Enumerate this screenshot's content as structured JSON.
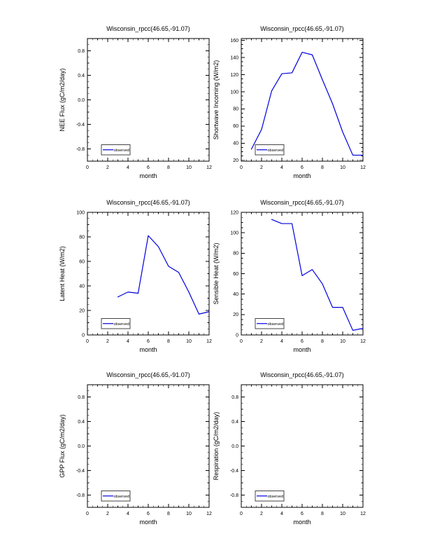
{
  "page": {
    "background": "#ffffff",
    "description": "Six-panel monthly observation plot sheet"
  },
  "chart_data": [
    {
      "id": "nee-flux",
      "type": "line",
      "title": "Wisconsin_rpcc(46.65,-91.07)",
      "xlabel": "month",
      "ylabel": "NEE Flux (gC/m2/day)",
      "xlim": [
        0,
        12
      ],
      "ylim": [
        -1,
        1
      ],
      "xtick_values": [
        0,
        2,
        4,
        6,
        8,
        10,
        12
      ],
      "xtick_labels": [
        "0",
        "2",
        "4",
        "6",
        "8",
        "10",
        "12"
      ],
      "xtick_minor": 0.5,
      "ytick_values": [
        -0.8,
        -0.4,
        0,
        0.4,
        0.8
      ],
      "ytick_labels": [
        "-0.8",
        "-0.4",
        "0.0",
        "0.4",
        "0.8"
      ],
      "ytick_minor": 0.1,
      "grid": false,
      "legend": {
        "label": "observed",
        "position": "lower-left"
      },
      "line_color": "#0000dd",
      "series": {
        "name": "observed",
        "x": [],
        "y": []
      }
    },
    {
      "id": "shortwave-incoming",
      "type": "line",
      "title": "Wisconsin_rpcc(46.65,-91.07)",
      "xlabel": "month",
      "ylabel": "Shortwave Incoming (W/m2)",
      "xlim": [
        0,
        12
      ],
      "ylim": [
        19,
        162
      ],
      "xtick_values": [
        0,
        2,
        4,
        6,
        8,
        10,
        12
      ],
      "xtick_labels": [
        "0",
        "2",
        "4",
        "6",
        "8",
        "10",
        "12"
      ],
      "xtick_minor": 0.5,
      "ytick_values": [
        20,
        40,
        60,
        80,
        100,
        120,
        140,
        160
      ],
      "ytick_labels": [
        "20",
        "40",
        "60",
        "80",
        "100",
        "120",
        "140",
        "160"
      ],
      "ytick_minor": 5,
      "grid": false,
      "legend": {
        "label": "observed",
        "position": "lower-left"
      },
      "line_color": "#0000dd",
      "series": {
        "name": "observed",
        "x": [
          1,
          2,
          3,
          4,
          5,
          6,
          7,
          8,
          9,
          10,
          11,
          12
        ],
        "y": [
          33,
          56,
          101,
          121,
          122,
          146,
          143,
          114,
          86,
          53,
          26,
          26
        ]
      }
    },
    {
      "id": "latent-heat",
      "type": "line",
      "title": "Wisconsin_rpcc(46.65,-91.07)",
      "xlabel": "month",
      "ylabel": "Latent Heat (W/m2)",
      "xlim": [
        0,
        12
      ],
      "ylim": [
        0,
        100
      ],
      "xtick_values": [
        0,
        2,
        4,
        6,
        8,
        10,
        12
      ],
      "xtick_labels": [
        "0",
        "2",
        "4",
        "6",
        "8",
        "10",
        "12"
      ],
      "xtick_minor": 0.5,
      "ytick_values": [
        0,
        20,
        40,
        60,
        80,
        100
      ],
      "ytick_labels": [
        "0",
        "20",
        "40",
        "60",
        "80",
        "100"
      ],
      "ytick_minor": 5,
      "grid": false,
      "legend": {
        "label": "observed",
        "position": "lower-left"
      },
      "line_color": "#0000dd",
      "series": {
        "name": "observed",
        "x": [
          3,
          4,
          5,
          6,
          7,
          8,
          9,
          10,
          11,
          12
        ],
        "y": [
          31,
          35,
          34,
          81,
          72,
          56,
          51,
          35,
          17,
          19
        ]
      }
    },
    {
      "id": "sensible-heat",
      "type": "line",
      "title": "Wisconsin_rpcc(46.65,-91.07)",
      "xlabel": "month",
      "ylabel": "Sensible Heat (W/m2)",
      "xlim": [
        0,
        12
      ],
      "ylim": [
        0,
        120
      ],
      "xtick_values": [
        0,
        2,
        4,
        6,
        8,
        10,
        12
      ],
      "xtick_labels": [
        "0",
        "2",
        "4",
        "6",
        "8",
        "10",
        "12"
      ],
      "xtick_minor": 0.5,
      "ytick_values": [
        0,
        20,
        40,
        60,
        80,
        100,
        120
      ],
      "ytick_labels": [
        "0",
        "20",
        "40",
        "60",
        "80",
        "100",
        "120"
      ],
      "ytick_minor": 5,
      "grid": false,
      "legend": {
        "label": "observed",
        "position": "lower-left"
      },
      "line_color": "#0000dd",
      "series": {
        "name": "observed",
        "x": [
          3,
          4,
          5,
          6,
          7,
          8,
          9,
          10,
          11,
          12
        ],
        "y": [
          113,
          109,
          109,
          58,
          64,
          50,
          27,
          27,
          4.5,
          6.5
        ]
      }
    },
    {
      "id": "gpp-flux",
      "type": "line",
      "title": "Wisconsin_rpcc(46.65,-91.07)",
      "xlabel": "month",
      "ylabel": "GPP Flux (gC/m2/day)",
      "xlim": [
        0,
        12
      ],
      "ylim": [
        -1,
        1
      ],
      "xtick_values": [
        0,
        2,
        4,
        6,
        8,
        10,
        12
      ],
      "xtick_labels": [
        "0",
        "2",
        "4",
        "6",
        "8",
        "10",
        "12"
      ],
      "xtick_minor": 0.5,
      "ytick_values": [
        -0.8,
        -0.4,
        0,
        0.4,
        0.8
      ],
      "ytick_labels": [
        "-0.8",
        "-0.4",
        "0.0",
        "0.4",
        "0.8"
      ],
      "ytick_minor": 0.1,
      "grid": false,
      "legend": {
        "label": "observed",
        "position": "lower-left"
      },
      "line_color": "#0000dd",
      "series": {
        "name": "observed",
        "x": [],
        "y": []
      }
    },
    {
      "id": "respiration",
      "type": "line",
      "title": "Wisconsin_rpcc(46.65,-91.07)",
      "xlabel": "month",
      "ylabel": "Respiration (gC/m2/day)",
      "xlim": [
        0,
        12
      ],
      "ylim": [
        -1,
        1
      ],
      "xtick_values": [
        0,
        2,
        4,
        6,
        8,
        10,
        12
      ],
      "xtick_labels": [
        "0",
        "2",
        "4",
        "6",
        "8",
        "10",
        "12"
      ],
      "xtick_minor": 0.5,
      "ytick_values": [
        -0.8,
        -0.4,
        0,
        0.4,
        0.8
      ],
      "ytick_labels": [
        "-0.8",
        "-0.4",
        "0.0",
        "0.4",
        "0.8"
      ],
      "ytick_minor": 0.1,
      "grid": false,
      "legend": {
        "label": "observed",
        "position": "lower-left"
      },
      "line_color": "#0000dd",
      "series": {
        "name": "observed",
        "x": [],
        "y": []
      }
    }
  ]
}
